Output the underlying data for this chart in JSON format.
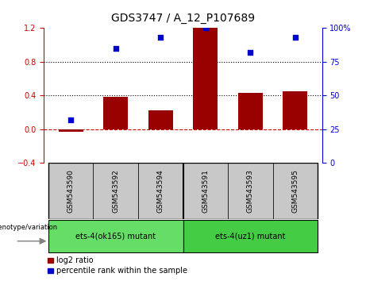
{
  "title": "GDS3747 / A_12_P107689",
  "categories": [
    "GSM543590",
    "GSM543592",
    "GSM543594",
    "GSM543591",
    "GSM543593",
    "GSM543595"
  ],
  "log2_ratio": [
    -0.03,
    0.38,
    0.22,
    1.2,
    0.43,
    0.45
  ],
  "percentile": [
    32,
    85,
    93,
    100,
    82,
    93
  ],
  "ylim_left": [
    -0.4,
    1.2
  ],
  "ylim_right": [
    0,
    100
  ],
  "bar_color": "#990000",
  "dot_color": "#0000cc",
  "groups": [
    {
      "label": "ets-4(ok165) mutant",
      "indices": [
        0,
        1,
        2
      ],
      "color": "#66dd66"
    },
    {
      "label": "ets-4(uz1) mutant",
      "indices": [
        3,
        4,
        5
      ],
      "color": "#44cc44"
    }
  ],
  "group_bg_color": "#c8c8c8",
  "hline_color": "#cc0000",
  "dotted_line_color": "#000000",
  "right_axis_color": "#0000cc",
  "left_axis_color": "#cc0000",
  "yticks_left": [
    -0.4,
    0.0,
    0.4,
    0.8,
    1.2
  ],
  "yticks_right": [
    0,
    25,
    50,
    75,
    100
  ],
  "ytick_labels_right": [
    "0",
    "25",
    "50",
    "75",
    "100%"
  ]
}
